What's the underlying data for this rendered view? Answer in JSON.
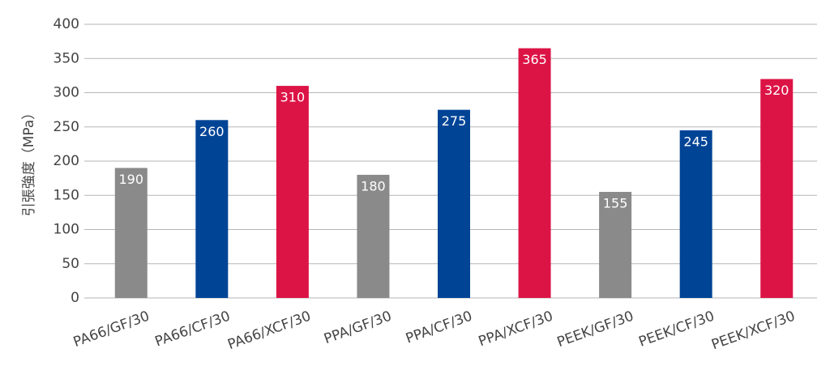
{
  "chart_data": {
    "type": "bar",
    "y_label": "引張強度（MPa）",
    "categories": [
      "PA66/GF/30",
      "PA66/CF/30",
      "PA66/XCF/30",
      "PPA/GF/30",
      "PPA/CF/30",
      "PPA/XCF/30",
      "PEEK/GF/30",
      "PEEK/CF/30",
      "PEEK/XCF/30"
    ],
    "values": [
      190,
      260,
      310,
      180,
      275,
      365,
      155,
      245,
      320
    ],
    "colors": [
      "#8a8a8a",
      "#004496",
      "#dc1446",
      "#8a8a8a",
      "#004496",
      "#dc1446",
      "#8a8a8a",
      "#004496",
      "#dc1446"
    ],
    "ylim": [
      0,
      400
    ],
    "yticks": [
      0,
      50,
      100,
      150,
      200,
      250,
      300,
      350,
      400
    ],
    "grid": true
  }
}
